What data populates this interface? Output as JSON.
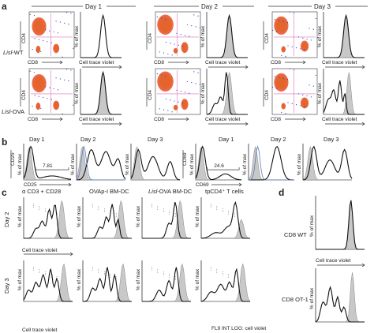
{
  "panels": {
    "a": "a",
    "b": "b",
    "c": "c",
    "d": "d"
  },
  "panel_a": {
    "days": [
      "Day 1",
      "Day 2",
      "Day 3"
    ],
    "rows": [
      {
        "label_italic": "Lisl",
        "label_rest": "-WT"
      },
      {
        "label_italic": "Lisl",
        "label_rest": "-OVA"
      }
    ],
    "dot_x_label": "CD8",
    "dot_y_label": "CD4",
    "hist_x_label": "Cell trace violet",
    "hist_y_label": "% of max"
  },
  "panel_b": {
    "groups": [
      {
        "marker": "CD25",
        "days": [
          "Day 1",
          "Day 2",
          "Day 3"
        ],
        "gate_value": "7.81"
      },
      {
        "marker": "CD69",
        "days": [
          "Day 1",
          "Day 2",
          "Day 3"
        ],
        "gate_value": "24.6"
      }
    ],
    "y_label": "% of max"
  },
  "panel_c": {
    "columns": [
      {
        "pre": "",
        "italic": "",
        "post": "α CD3 + CD28"
      },
      {
        "pre": "",
        "italic": "",
        "post": "OVAp-I BM-DC"
      },
      {
        "pre": "",
        "italic": "Lisl",
        "post": "-OVA BM-DC"
      },
      {
        "pre": "",
        "italic": "",
        "post": "tpCD4⁺ T cells"
      }
    ],
    "rows": [
      "Day 2",
      "Day 3"
    ],
    "y_label": "% of max",
    "x_label_day2": "Cell trace violet",
    "x_label_day3": "Cell trace violet",
    "x_label_day3_last": "FL9 INT LOG: cell violet"
  },
  "panel_d": {
    "rows": [
      "CD8 WT",
      "CD8 OT-1"
    ],
    "y_label": "% of max",
    "x_label": "Cell trace violet"
  }
}
